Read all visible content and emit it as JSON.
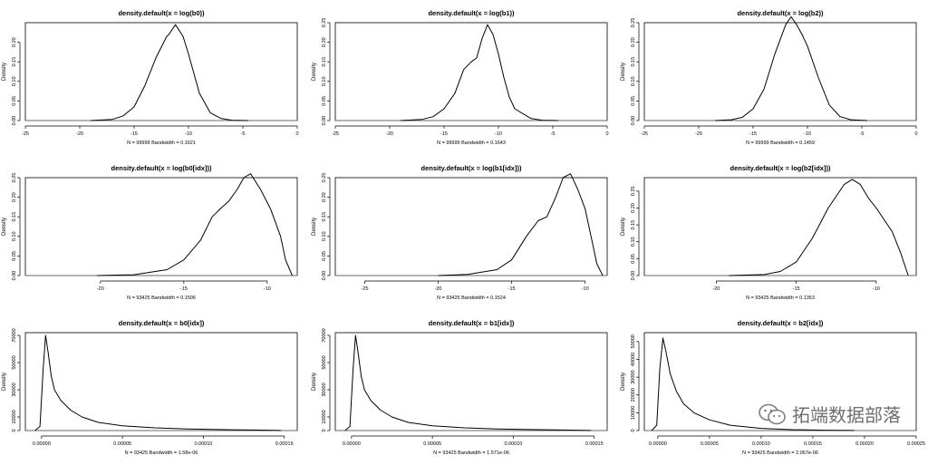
{
  "chart_data": [
    {
      "type": "line",
      "title": "density.default(x = log(b0))",
      "ylabel": "Density",
      "subtitle": "N = 99999   Bandwidth = 0.1621",
      "xlim": [
        -25,
        0
      ],
      "xticks": [
        -25,
        -20,
        -15,
        -10,
        -5,
        0
      ],
      "xticklabels": [
        "-25",
        "-20",
        "-15",
        "-10",
        "-5",
        "0"
      ],
      "ylim": [
        0,
        0.25
      ],
      "yticks": [
        0,
        0.05,
        0.1,
        0.15,
        0.2
      ],
      "yticklabels": [
        "0.00",
        "0.05",
        "0.10",
        "0.15",
        "0.20"
      ],
      "x": [
        -19,
        -17,
        -16,
        -15,
        -14,
        -13,
        -12,
        -11.8,
        -11.2,
        -10.5,
        -10,
        -9,
        -8,
        -7,
        -6,
        -4.5
      ],
      "y": [
        0.0,
        0.003,
        0.012,
        0.035,
        0.09,
        0.16,
        0.215,
        0.22,
        0.245,
        0.215,
        0.17,
        0.07,
        0.02,
        0.005,
        0.001,
        0.0
      ]
    },
    {
      "type": "line",
      "title": "density.default(x = log(b1))",
      "ylabel": "Density",
      "subtitle": "N = 99999   Bandwidth = 0.1643",
      "xlim": [
        -25,
        0
      ],
      "xticks": [
        -25,
        -20,
        -15,
        -10,
        -5,
        0
      ],
      "xticklabels": [
        "-25",
        "-20",
        "-15",
        "-10",
        "-5",
        "0"
      ],
      "ylim": [
        0,
        0.25
      ],
      "yticks": [
        0,
        0.05,
        0.1,
        0.15,
        0.2,
        0.25
      ],
      "yticklabels": [
        "0.00",
        "0.05",
        "0.10",
        "0.15",
        "0.20",
        "0.25"
      ],
      "x": [
        -19,
        -17,
        -16,
        -15,
        -14,
        -13.2,
        -12.5,
        -12,
        -11.5,
        -11,
        -10.5,
        -10,
        -9.5,
        -9,
        -8.5,
        -7,
        -6,
        -4.5
      ],
      "y": [
        0.0,
        0.003,
        0.01,
        0.03,
        0.07,
        0.13,
        0.15,
        0.16,
        0.21,
        0.245,
        0.22,
        0.17,
        0.11,
        0.06,
        0.03,
        0.005,
        0.001,
        0.0
      ]
    },
    {
      "type": "line",
      "title": "density.default(x = log(b2))",
      "ylabel": "Density",
      "subtitle": "N = 99999   Bandwidth = 0.1459",
      "xlim": [
        -25,
        0
      ],
      "xticks": [
        -25,
        -20,
        -15,
        -10,
        -5,
        0
      ],
      "xticklabels": [
        "-25",
        "-20",
        "-15",
        "-10",
        "-5",
        "0"
      ],
      "ylim": [
        0,
        0.25
      ],
      "yticks": [
        0,
        0.05,
        0.1,
        0.15,
        0.2,
        0.25
      ],
      "yticklabels": [
        "0.00",
        "0.05",
        "0.10",
        "0.15",
        "0.20",
        "0.25"
      ],
      "x": [
        -18.5,
        -17,
        -16,
        -15,
        -14,
        -13,
        -12,
        -11.5,
        -11,
        -10.5,
        -10,
        -9,
        -8,
        -7,
        -6,
        -4.5
      ],
      "y": [
        0.0,
        0.002,
        0.008,
        0.03,
        0.08,
        0.17,
        0.245,
        0.265,
        0.245,
        0.22,
        0.19,
        0.11,
        0.04,
        0.01,
        0.002,
        0.0
      ]
    },
    {
      "type": "line",
      "title": "density.default(x = log(b0[idx]))",
      "ylabel": "Density",
      "subtitle": "N = 93425   Bandwidth = 0.1506",
      "xlim": [
        -24.5,
        -8.2
      ],
      "xticks": [
        -20,
        -15,
        -10
      ],
      "xticklabels": [
        "-20",
        "-15",
        "-10"
      ],
      "ylim": [
        0,
        0.25
      ],
      "yticks": [
        0,
        0.05,
        0.1,
        0.15,
        0.2,
        0.25
      ],
      "yticklabels": [
        "0.00",
        "0.05",
        "0.10",
        "0.15",
        "0.20",
        "0.25"
      ],
      "x": [
        -20.2,
        -18,
        -16,
        -15,
        -14,
        -13.3,
        -12.7,
        -12.3,
        -11.8,
        -11.4,
        -11,
        -10.4,
        -9.8,
        -9.2,
        -8.9,
        -8.5
      ],
      "y": [
        0.0,
        0.002,
        0.015,
        0.04,
        0.09,
        0.15,
        0.175,
        0.19,
        0.22,
        0.25,
        0.26,
        0.22,
        0.17,
        0.1,
        0.04,
        0.0
      ]
    },
    {
      "type": "line",
      "title": "density.default(x = log(b1[idx]))",
      "ylabel": "Density",
      "subtitle": "N = 93425   Bandwidth = 0.1524",
      "xlim": [
        -27,
        -8.5
      ],
      "xticks": [
        -25,
        -20,
        -15,
        -10
      ],
      "xticklabels": [
        "-25",
        "-20",
        "-15",
        "-10"
      ],
      "ylim": [
        0,
        0.25
      ],
      "yticks": [
        0,
        0.05,
        0.1,
        0.15,
        0.2,
        0.25
      ],
      "yticklabels": [
        "0.00",
        "0.05",
        "0.10",
        "0.15",
        "0.20",
        "0.25"
      ],
      "x": [
        -20,
        -18,
        -16,
        -15,
        -14,
        -13.2,
        -12.6,
        -12,
        -11.5,
        -11,
        -10.5,
        -10,
        -9.6,
        -9.2,
        -8.8
      ],
      "y": [
        0.0,
        0.003,
        0.015,
        0.04,
        0.1,
        0.14,
        0.15,
        0.2,
        0.25,
        0.26,
        0.22,
        0.17,
        0.1,
        0.03,
        0.0
      ]
    },
    {
      "type": "line",
      "title": "density.default(x = log(b2[idx]))",
      "ylabel": "Density",
      "subtitle": "N = 93425   Bandwidth = 0.1353",
      "xlim": [
        -24.5,
        -7.5
      ],
      "xticks": [
        -20,
        -15,
        -10
      ],
      "xticklabels": [
        "-20",
        "-15",
        "-10"
      ],
      "ylim": [
        0,
        0.29
      ],
      "yticks": [
        0,
        0.05,
        0.1,
        0.15,
        0.2,
        0.25
      ],
      "yticklabels": [
        "0.00",
        "0.05",
        "0.10",
        "0.15",
        "0.20",
        "0.25"
      ],
      "x": [
        -19.2,
        -17,
        -16,
        -15,
        -14,
        -13,
        -12,
        -11.5,
        -11,
        -10.5,
        -10,
        -9,
        -8.5,
        -8
      ],
      "y": [
        0.0,
        0.003,
        0.012,
        0.04,
        0.11,
        0.2,
        0.27,
        0.285,
        0.27,
        0.23,
        0.2,
        0.13,
        0.07,
        0.0
      ]
    },
    {
      "type": "line",
      "title": "density.default(x = b0[idx])",
      "ylabel": "Density",
      "subtitle": "N = 93425   Bandwidth = 1.58e-06",
      "xlim": [
        -1e-05,
        0.000158
      ],
      "xticks": [
        0,
        5e-05,
        0.0001,
        0.00015
      ],
      "xticklabels": [
        "0.00000",
        "0.00005",
        "0.00010",
        "0.00015"
      ],
      "ylim": [
        0,
        72000
      ],
      "yticks": [
        0,
        10000,
        30000,
        50000,
        70000
      ],
      "yticklabels": [
        "0",
        "10000",
        "30000",
        "50000",
        "70000"
      ],
      "x": [
        -4e-06,
        -1e-06,
        1e-06,
        2.5e-06,
        4e-06,
        6e-06,
        8e-06,
        1.2e-05,
        1.8e-05,
        2.5e-05,
        3.5e-05,
        5e-05,
        7e-05,
        9e-05,
        0.00011,
        0.00013,
        0.000148
      ],
      "y": [
        0,
        3000,
        45000,
        70000,
        58000,
        40000,
        30000,
        22000,
        15000,
        10000,
        6000,
        3500,
        2000,
        1200,
        700,
        400,
        100
      ]
    },
    {
      "type": "line",
      "title": "density.default(x = b1[idx])",
      "ylabel": "Density",
      "subtitle": "N = 93425   Bandwidth = 1.571e-06",
      "xlim": [
        -1e-05,
        0.000158
      ],
      "xticks": [
        0,
        5e-05,
        0.0001,
        0.00015
      ],
      "xticklabels": [
        "0.00000",
        "0.00005",
        "0.00010",
        "0.00015"
      ],
      "ylim": [
        0,
        72000
      ],
      "yticks": [
        0,
        10000,
        30000,
        50000,
        70000
      ],
      "yticklabels": [
        "0",
        "10000",
        "30000",
        "50000",
        "70000"
      ],
      "x": [
        -4e-06,
        -1e-06,
        1e-06,
        2.5e-06,
        4e-06,
        6e-06,
        8e-06,
        1.2e-05,
        1.8e-05,
        2.5e-05,
        3.5e-05,
        5e-05,
        7e-05,
        9e-05,
        0.00011,
        0.00013,
        0.000148
      ],
      "y": [
        0,
        3000,
        45000,
        70000,
        58000,
        40000,
        30000,
        22000,
        15000,
        10000,
        6000,
        3500,
        2000,
        1200,
        700,
        400,
        100
      ]
    },
    {
      "type": "line",
      "title": "density.default(x = b2[idx])",
      "ylabel": "Density",
      "subtitle": "N = 93425   Bandwidth = 2.067e-06",
      "xlim": [
        -1.3e-05,
        0.00025
      ],
      "xticks": [
        0,
        5e-05,
        0.0001,
        0.00015,
        0.0002,
        0.00025
      ],
      "xticklabels": [
        "0.00000",
        "0.00005",
        "0.00010",
        "0.00015",
        "0.00020",
        "0.00025"
      ],
      "ylim": [
        0,
        55000
      ],
      "yticks": [
        0,
        10000,
        20000,
        30000,
        40000,
        50000
      ],
      "yticklabels": [
        "0",
        "10000",
        "20000",
        "30000",
        "40000",
        "50000"
      ],
      "x": [
        -6e-06,
        -1e-06,
        2e-06,
        5e-06,
        8e-06,
        1.2e-05,
        1.8e-05,
        2.5e-05,
        3.5e-05,
        5e-05,
        7e-05,
        0.0001,
        0.00013,
        0.00016,
        0.00019
      ],
      "y": [
        0,
        3000,
        35000,
        52000,
        44000,
        32000,
        22000,
        15000,
        10000,
        6000,
        3000,
        1200,
        500,
        200,
        50
      ]
    }
  ],
  "watermark": {
    "text": "拓端数据部落",
    "icon": "wechat-icon"
  }
}
